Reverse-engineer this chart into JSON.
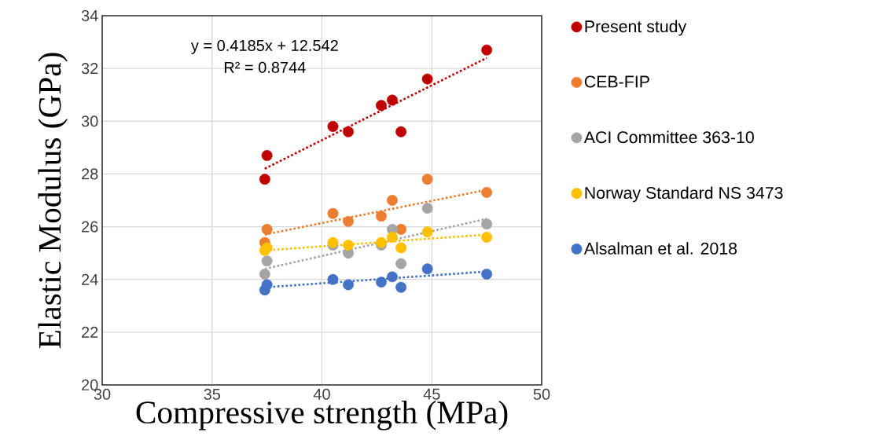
{
  "chart_data": {
    "type": "scatter",
    "xlabel": "Compressive strength (MPa)",
    "ylabel": "Elastic Modulus (GPa)",
    "xlim": [
      30,
      50
    ],
    "xticks": [
      30,
      35,
      40,
      45,
      50
    ],
    "ylim": [
      20,
      34
    ],
    "yticks": [
      20,
      22,
      24,
      26,
      28,
      30,
      32,
      34
    ],
    "grid": true,
    "legend": "right",
    "marker": "circle",
    "annotations": [
      "y = 0.4185x + 12.542",
      "R² = 0.8744"
    ],
    "series": [
      {
        "name": "Present study",
        "color": "#c00000",
        "x": [
          37.4,
          37.5,
          40.5,
          41.2,
          42.7,
          43.2,
          43.6,
          44.8,
          47.5
        ],
        "values": [
          27.8,
          28.7,
          29.8,
          29.6,
          30.6,
          30.8,
          29.6,
          31.6,
          32.7
        ]
      },
      {
        "name": "CEB-FIP",
        "color": "#ed7d31",
        "x": [
          37.4,
          37.5,
          40.5,
          41.2,
          42.7,
          43.2,
          43.6,
          44.8,
          47.5
        ],
        "values": [
          25.4,
          25.9,
          26.5,
          26.2,
          26.4,
          27.0,
          25.9,
          27.8,
          27.3
        ]
      },
      {
        "name": "ACI Committee 363-10",
        "color": "#a5a5a5",
        "x": [
          37.4,
          37.5,
          40.5,
          41.2,
          42.7,
          43.2,
          43.6,
          44.8,
          47.5
        ],
        "values": [
          24.2,
          24.7,
          25.3,
          25.0,
          25.3,
          25.9,
          24.6,
          26.7,
          26.1
        ]
      },
      {
        "name": "Norway Standard NS 3473",
        "color": "#ffc000",
        "x": [
          37.4,
          37.5,
          40.5,
          41.2,
          42.7,
          43.2,
          43.6,
          44.8,
          47.5
        ],
        "values": [
          25.1,
          25.2,
          25.4,
          25.3,
          25.4,
          25.6,
          25.2,
          25.8,
          25.6
        ]
      },
      {
        "name": "Alsalman et al. 2018",
        "color": "#4472c4",
        "x": [
          37.4,
          37.5,
          40.5,
          41.2,
          42.7,
          43.2,
          43.6,
          44.8,
          47.5
        ],
        "values": [
          23.6,
          23.8,
          24.0,
          23.8,
          23.9,
          24.1,
          23.7,
          24.4,
          24.2
        ]
      },
      {
        "type": "line",
        "color": "#c00000",
        "line_style": "dotted",
        "marker": "none",
        "x": [
          37.4,
          47.5
        ],
        "values": [
          28.2,
          32.4
        ]
      },
      {
        "type": "line",
        "color": "#ed7d31",
        "line_style": "dotted",
        "marker": "none",
        "x": [
          37.4,
          47.5
        ],
        "values": [
          25.7,
          27.4
        ]
      },
      {
        "type": "line",
        "color": "#a5a5a5",
        "line_style": "dotted",
        "marker": "none",
        "x": [
          37.4,
          47.5
        ],
        "values": [
          24.4,
          26.3
        ]
      },
      {
        "type": "line",
        "color": "#ffc000",
        "line_style": "dotted",
        "marker": "none",
        "x": [
          37.4,
          47.5
        ],
        "values": [
          25.1,
          25.7
        ]
      },
      {
        "type": "line",
        "color": "#4472c4",
        "line_style": "dotted",
        "marker": "none",
        "x": [
          37.4,
          47.5
        ],
        "values": [
          23.7,
          24.3
        ]
      }
    ]
  }
}
